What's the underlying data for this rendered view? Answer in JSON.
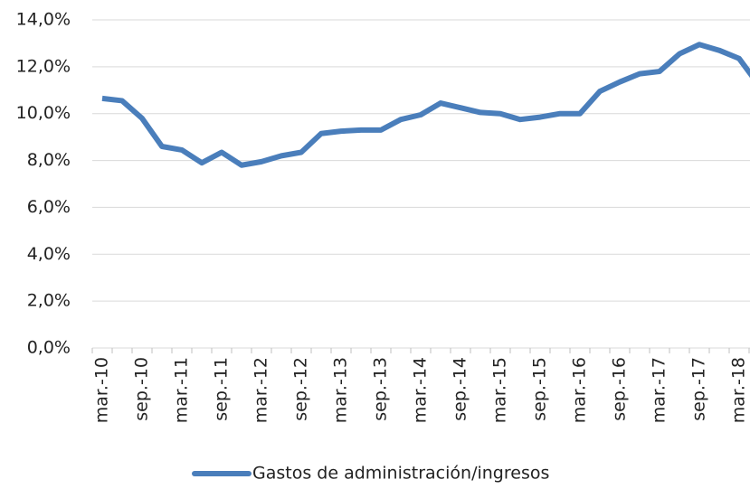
{
  "chart_data": {
    "type": "line",
    "categories": [
      "mar.-10",
      null,
      "sep.-10",
      null,
      "mar.-11",
      null,
      "sep.-11",
      null,
      "mar.-12",
      null,
      "sep.-12",
      null,
      "mar.-13",
      null,
      "sep.-13",
      null,
      "mar.-14",
      null,
      "sep.-14",
      null,
      "mar.-15",
      null,
      "sep.-15",
      null,
      "mar.-16",
      null,
      "sep.-16",
      null,
      "mar.-17",
      null,
      "sep.-17",
      null,
      "mar.-18",
      null
    ],
    "series": [
      {
        "name": "Gastos de administración/ingresos",
        "color": "#4a7ebb",
        "values": [
          10.65,
          10.55,
          9.8,
          8.6,
          8.45,
          7.9,
          8.35,
          7.8,
          7.95,
          8.2,
          8.35,
          9.15,
          9.25,
          9.3,
          9.3,
          9.75,
          9.95,
          10.45,
          10.25,
          10.05,
          10.0,
          9.75,
          9.85,
          10.0,
          10.0,
          10.95,
          11.35,
          11.7,
          11.8,
          12.55,
          12.95,
          12.7,
          12.35,
          11.2
        ]
      }
    ],
    "ylim": [
      0,
      14
    ],
    "yticks": [
      {
        "value": 0,
        "label": "0,0%"
      },
      {
        "value": 2,
        "label": "2,0%"
      },
      {
        "value": 4,
        "label": "4,0%"
      },
      {
        "value": 6,
        "label": "6,0%"
      },
      {
        "value": 8,
        "label": "8,0%"
      },
      {
        "value": 10,
        "label": "10,0%"
      },
      {
        "value": 12,
        "label": "12,0%"
      },
      {
        "value": 14,
        "label": "14,0%"
      }
    ],
    "grid": true
  }
}
